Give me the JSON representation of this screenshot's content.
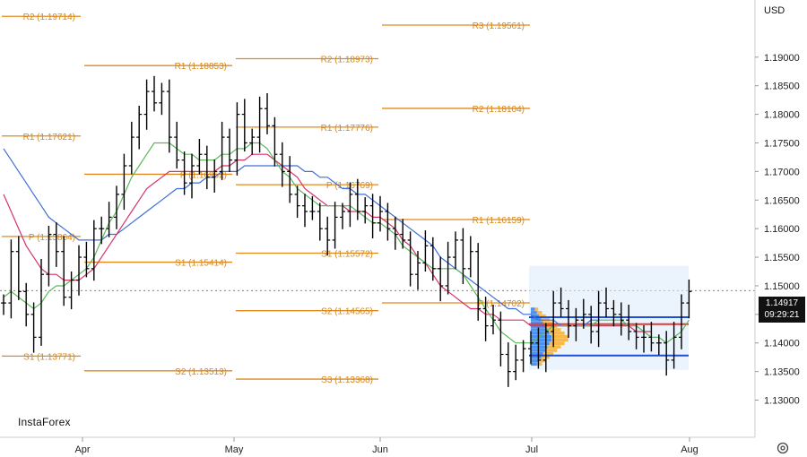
{
  "currency": "USD",
  "logo_text": "InstaForex",
  "last_price": "1.14917",
  "countdown": "09:29:21",
  "colors": {
    "pivot": "#e08a1e",
    "pivot_label": "#d4881f",
    "candle": "#000000",
    "ma_fast": "#5cb85c",
    "ma_mid": "#d6336c",
    "ma_slow": "#3f6fd9",
    "vp_box": "#dbe9f9",
    "vp_bar": "#2f80ed",
    "vp_bar_alt": "#f6b23a",
    "vp_line_red": "#e53935",
    "vp_line_blue": "#1f4fd1"
  },
  "chart_data": {
    "type": "candlestick",
    "ylim": [
      1.1235,
      1.2
    ],
    "y_ticks": [
      "1.19000",
      "1.18500",
      "1.18000",
      "1.17500",
      "1.17000",
      "1.16500",
      "1.16000",
      "1.15500",
      "1.15000",
      "1.14500",
      "1.14000",
      "1.13500",
      "1.13000"
    ],
    "x_ticks": [
      "Apr",
      "May",
      "Jun",
      "Jul",
      "Aug"
    ],
    "pivot_levels": [
      {
        "period": "Mar",
        "label": "R2 (1.19714)",
        "value": 1.19714
      },
      {
        "period": "Mar",
        "label": "R1 (1.17621)",
        "value": 1.17621
      },
      {
        "period": "Mar",
        "label": "P (1.15864)",
        "value": 1.15864
      },
      {
        "period": "Mar",
        "label": "S1 (1.13771)",
        "value": 1.13771
      },
      {
        "period": "Apr",
        "label": "R1 (1.18853)",
        "value": 1.18853
      },
      {
        "period": "Apr",
        "label": "P (1.16952)",
        "value": 1.16952
      },
      {
        "period": "Apr",
        "label": "S1 (1.15414)",
        "value": 1.15414
      },
      {
        "period": "Apr",
        "label": "S2 (1.13513)",
        "value": 1.13513
      },
      {
        "period": "May",
        "label": "R2 (1.18973)",
        "value": 1.18973
      },
      {
        "period": "May",
        "label": "R1 (1.17776)",
        "value": 1.17776
      },
      {
        "period": "May",
        "label": "P (1.16769)",
        "value": 1.16769
      },
      {
        "period": "May",
        "label": "S1 (1.15572)",
        "value": 1.15572
      },
      {
        "period": "May",
        "label": "S2 (1.14565)",
        "value": 1.14565
      },
      {
        "period": "May",
        "label": "S3 (1.13368)",
        "value": 1.13368
      },
      {
        "period": "Jun",
        "label": "R3 (1.19561)",
        "value": 1.19561
      },
      {
        "period": "Jun",
        "label": "R2 (1.18104)",
        "value": 1.18104
      },
      {
        "period": "Jun",
        "label": "R1 (1.16159)",
        "value": 1.16159
      },
      {
        "period": "Jun",
        "label": "P (1.14702)",
        "value": 1.14702
      }
    ],
    "closes": [
      1.147,
      1.156,
      1.149,
      1.145,
      1.141,
      1.152,
      1.159,
      1.156,
      1.148,
      1.151,
      1.155,
      1.153,
      1.16,
      1.16,
      1.162,
      1.166,
      1.171,
      1.176,
      1.18,
      1.184,
      1.182,
      1.184,
      1.176,
      1.172,
      1.168,
      1.171,
      1.173,
      1.169,
      1.17,
      1.176,
      1.172,
      1.18,
      1.175,
      1.176,
      1.181,
      1.178,
      1.173,
      1.17,
      1.166,
      1.164,
      1.163,
      1.163,
      1.16,
      1.158,
      1.162,
      1.163,
      1.166,
      1.163,
      1.164,
      1.161,
      1.163,
      1.16,
      1.159,
      1.158,
      1.152,
      1.154,
      1.157,
      1.153,
      1.15,
      1.155,
      1.158,
      1.153,
      1.156,
      1.146,
      1.143,
      1.144,
      1.138,
      1.135,
      1.137,
      1.139,
      1.14,
      1.137,
      1.142,
      1.147,
      1.146,
      1.143,
      1.144,
      1.145,
      1.142,
      1.147,
      1.146,
      1.145,
      1.144,
      1.142,
      1.141,
      1.141,
      1.14,
      1.14,
      1.137,
      1.141,
      1.147,
      1.149
    ],
    "ma_fast": [
      1.148,
      1.149,
      1.148,
      1.147,
      1.146,
      1.147,
      1.149,
      1.15,
      1.15,
      1.151,
      1.152,
      1.153,
      1.155,
      1.158,
      1.161,
      1.163,
      1.166,
      1.169,
      1.171,
      1.173,
      1.175,
      1.175,
      1.175,
      1.174,
      1.173,
      1.173,
      1.172,
      1.172,
      1.172,
      1.173,
      1.173,
      1.174,
      1.174,
      1.175,
      1.175,
      1.174,
      1.172,
      1.17,
      1.169,
      1.167,
      1.166,
      1.165,
      1.164,
      1.164,
      1.164,
      1.164,
      1.164,
      1.163,
      1.162,
      1.161,
      1.161,
      1.16,
      1.159,
      1.157,
      1.156,
      1.155,
      1.154,
      1.153,
      1.153,
      1.153,
      1.153,
      1.152,
      1.15,
      1.148,
      1.146,
      1.144,
      1.142,
      1.141,
      1.14,
      1.14,
      1.14,
      1.141,
      1.142,
      1.143,
      1.143,
      1.143,
      1.143,
      1.143,
      1.143,
      1.144,
      1.144,
      1.144,
      1.144,
      1.143,
      1.143,
      1.142,
      1.141,
      1.141,
      1.14,
      1.141,
      1.142,
      1.144
    ],
    "ma_mid": [
      1.166,
      1.163,
      1.16,
      1.157,
      1.155,
      1.153,
      1.152,
      1.152,
      1.151,
      1.151,
      1.151,
      1.152,
      1.153,
      1.155,
      1.157,
      1.159,
      1.161,
      1.163,
      1.165,
      1.167,
      1.168,
      1.169,
      1.17,
      1.17,
      1.17,
      1.17,
      1.17,
      1.17,
      1.17,
      1.171,
      1.171,
      1.172,
      1.172,
      1.173,
      1.173,
      1.173,
      1.172,
      1.171,
      1.17,
      1.169,
      1.167,
      1.166,
      1.165,
      1.164,
      1.164,
      1.164,
      1.163,
      1.163,
      1.163,
      1.162,
      1.162,
      1.161,
      1.16,
      1.158,
      1.157,
      1.155,
      1.154,
      1.152,
      1.15,
      1.149,
      1.148,
      1.147,
      1.146,
      1.146,
      1.145,
      1.145,
      1.144,
      1.144,
      1.144,
      1.144,
      1.143,
      1.143,
      1.143,
      1.143,
      1.143,
      1.143,
      1.143,
      1.143,
      1.143,
      1.143,
      1.143,
      1.143,
      1.143,
      1.143,
      1.142,
      1.142,
      1.142
    ],
    "ma_slow": [
      1.174,
      1.172,
      1.17,
      1.168,
      1.166,
      1.164,
      1.162,
      1.161,
      1.16,
      1.159,
      1.158,
      1.158,
      1.158,
      1.158,
      1.159,
      1.159,
      1.16,
      1.161,
      1.162,
      1.163,
      1.164,
      1.165,
      1.166,
      1.167,
      1.167,
      1.168,
      1.168,
      1.169,
      1.169,
      1.17,
      1.17,
      1.17,
      1.171,
      1.171,
      1.171,
      1.171,
      1.171,
      1.171,
      1.171,
      1.171,
      1.17,
      1.17,
      1.169,
      1.169,
      1.168,
      1.167,
      1.167,
      1.166,
      1.166,
      1.165,
      1.164,
      1.163,
      1.162,
      1.161,
      1.16,
      1.159,
      1.158,
      1.157,
      1.155,
      1.154,
      1.153,
      1.152,
      1.151,
      1.15,
      1.149,
      1.148,
      1.147,
      1.146,
      1.146,
      1.145,
      1.145,
      1.144,
      1.144,
      1.144,
      1.143,
      1.143,
      1.143,
      1.143,
      1.144,
      1.144
    ]
  }
}
